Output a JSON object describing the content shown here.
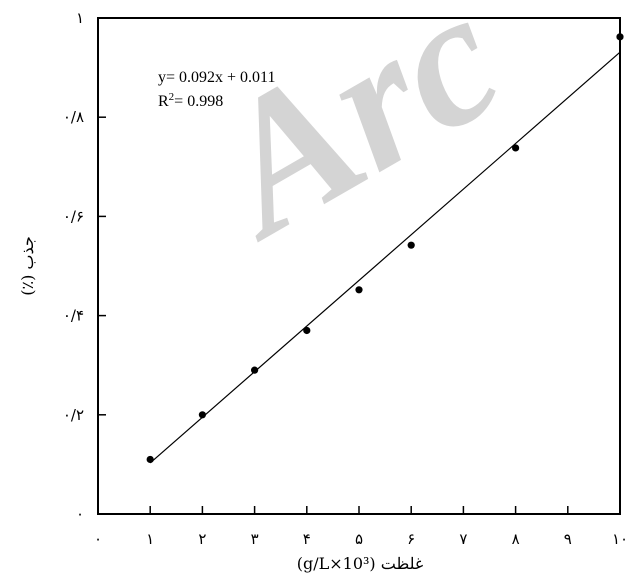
{
  "watermark": "Arc",
  "chart_data": {
    "type": "scatter",
    "xlabel": "غلظت (g/L×10³)",
    "ylabel": "جذب (٪)",
    "xlim": [
      0,
      10
    ],
    "ylim": [
      0,
      1
    ],
    "x_ticks": [
      0,
      1,
      2,
      3,
      4,
      5,
      6,
      7,
      8,
      9,
      10
    ],
    "x_tick_labels": [
      "۰",
      "۱",
      "۲",
      "۳",
      "۴",
      "۵",
      "۶",
      "۷",
      "۸",
      "۹",
      "۱۰"
    ],
    "y_ticks": [
      0,
      0.2,
      0.4,
      0.6,
      0.8,
      1
    ],
    "y_tick_labels": [
      "۰",
      "۰/۲",
      "۰/۴",
      "۰/۶",
      "۰/۸",
      "۱"
    ],
    "series": [
      {
        "x": [
          1,
          2,
          3,
          4,
          5,
          6,
          8,
          10
        ],
        "y": [
          0.11,
          0.2,
          0.29,
          0.37,
          0.452,
          0.542,
          0.738,
          0.962
        ]
      }
    ],
    "trendline": {
      "slope": 0.092,
      "intercept": 0.011,
      "x_range": [
        1,
        10
      ]
    },
    "annotation": {
      "equation": "y= 0.092x + 0.011",
      "r2_prefix": "R",
      "r2_sup": "2",
      "r2_suffix": "= 0.998"
    },
    "grid": false,
    "legend": "none"
  }
}
